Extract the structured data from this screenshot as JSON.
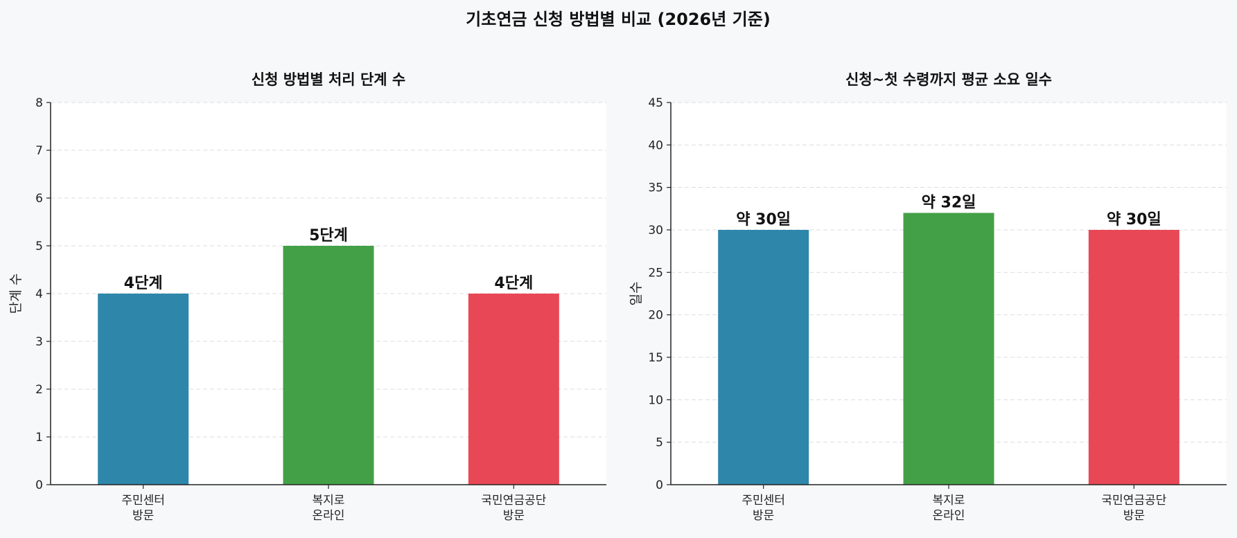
{
  "suptitle": "기초연금 신청 방법별 비교 (2026년 기준)",
  "colors": {
    "page_background": "#f7f8fa",
    "plot_background": "#ffffff",
    "grid": "#dddddd",
    "axis": "#222222",
    "series": [
      "#2e86ab",
      "#43a047",
      "#e84855"
    ]
  },
  "chart_data": [
    {
      "type": "bar",
      "title": "신청 방법별 처리 단계 수",
      "xlabel": "",
      "ylabel": "단계 수",
      "categories": [
        [
          "주민센터",
          "방문"
        ],
        [
          "복지로",
          "온라인"
        ],
        [
          "국민연금공단",
          "방문"
        ]
      ],
      "values": [
        4,
        5,
        4
      ],
      "data_labels": [
        "4단계",
        "5단계",
        "4단계"
      ],
      "ylim": [
        0,
        8
      ],
      "yticks": [
        0,
        1,
        2,
        3,
        4,
        5,
        6,
        7,
        8
      ],
      "grid": "y-dashed",
      "colors": [
        "#2e86ab",
        "#43a047",
        "#e84855"
      ]
    },
    {
      "type": "bar",
      "title": "신청~첫 수령까지 평균 소요 일수",
      "xlabel": "",
      "ylabel": "일수",
      "categories": [
        [
          "주민센터",
          "방문"
        ],
        [
          "복지로",
          "온라인"
        ],
        [
          "국민연금공단",
          "방문"
        ]
      ],
      "values": [
        30,
        32,
        30
      ],
      "data_labels": [
        "약 30일",
        "약 32일",
        "약 30일"
      ],
      "ylim": [
        0,
        45
      ],
      "yticks": [
        0,
        5,
        10,
        15,
        20,
        25,
        30,
        35,
        40,
        45
      ],
      "grid": "y-dashed",
      "colors": [
        "#2e86ab",
        "#43a047",
        "#e84855"
      ]
    }
  ]
}
